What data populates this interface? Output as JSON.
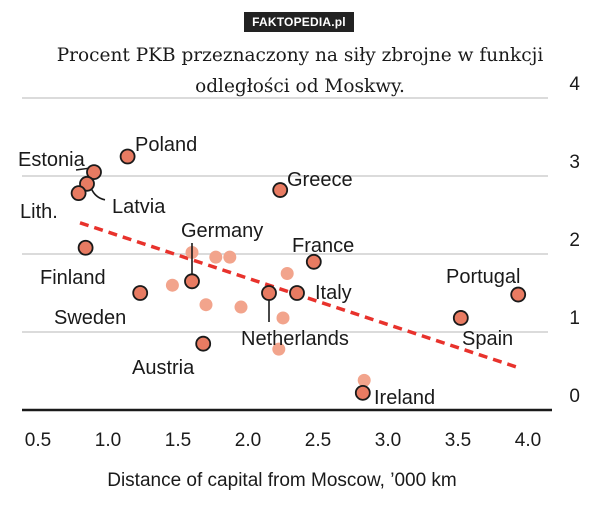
{
  "watermark": "FAKTOPEDIA.pl",
  "caption": {
    "line1": "Procent PKB przeznaczony na siły zbrojne w funkcji",
    "line2": "odległości od Moskwy."
  },
  "chart_data": {
    "type": "scatter",
    "xlabel": "Distance of capital from Moscow, ’000 km",
    "ylabel": "",
    "xlim": [
      0.5,
      4.0
    ],
    "ylim": [
      0,
      4
    ],
    "x_ticks": [
      "0.5",
      "1.0",
      "1.5",
      "2.0",
      "2.5",
      "3.0",
      "3.5",
      "4.0"
    ],
    "y_ticks": [
      "0",
      "1",
      "2",
      "3",
      "4"
    ],
    "grid": true,
    "trendline": {
      "x": [
        0.8,
        3.92
      ],
      "y": [
        2.4,
        0.55
      ],
      "style": "dashed",
      "color": "#e8322c"
    },
    "colors": {
      "labeled": "#e87b62",
      "unlabeled": "#f2a48c",
      "outline": "#1a1a1a",
      "grid": "#cfcfcf",
      "axis": "#1a1a1a",
      "text": "#1a1a1a"
    },
    "labeled_points": [
      {
        "label": "Estonia",
        "x": 0.9,
        "y": 3.05
      },
      {
        "label": "Latvia",
        "x": 0.85,
        "y": 2.9
      },
      {
        "label": "Lith.",
        "x": 0.79,
        "y": 2.78
      },
      {
        "label": "Poland",
        "x": 1.14,
        "y": 3.25
      },
      {
        "label": "Finland",
        "x": 0.84,
        "y": 2.08
      },
      {
        "label": "Sweden",
        "x": 1.23,
        "y": 1.5
      },
      {
        "label": "Germany",
        "x": 1.6,
        "y": 1.65
      },
      {
        "label": "Austria",
        "x": 1.68,
        "y": 0.85
      },
      {
        "label": "Greece",
        "x": 2.23,
        "y": 2.82
      },
      {
        "label": "France",
        "x": 2.47,
        "y": 1.9
      },
      {
        "label": "Italy",
        "x": 2.35,
        "y": 1.5
      },
      {
        "label": "Netherlands",
        "x": 2.15,
        "y": 1.5
      },
      {
        "label": "Ireland",
        "x": 2.82,
        "y": 0.22
      },
      {
        "label": "Portugal",
        "x": 3.93,
        "y": 1.48
      },
      {
        "label": "Spain",
        "x": 3.52,
        "y": 1.18
      }
    ],
    "unlabeled_points": [
      {
        "x": 1.6,
        "y": 2.02
      },
      {
        "x": 1.77,
        "y": 1.96
      },
      {
        "x": 1.87,
        "y": 1.96
      },
      {
        "x": 1.46,
        "y": 1.6
      },
      {
        "x": 1.7,
        "y": 1.35
      },
      {
        "x": 1.95,
        "y": 1.32
      },
      {
        "x": 2.28,
        "y": 1.75
      },
      {
        "x": 2.25,
        "y": 1.18
      },
      {
        "x": 2.22,
        "y": 0.78
      },
      {
        "x": 2.83,
        "y": 0.38
      }
    ]
  }
}
